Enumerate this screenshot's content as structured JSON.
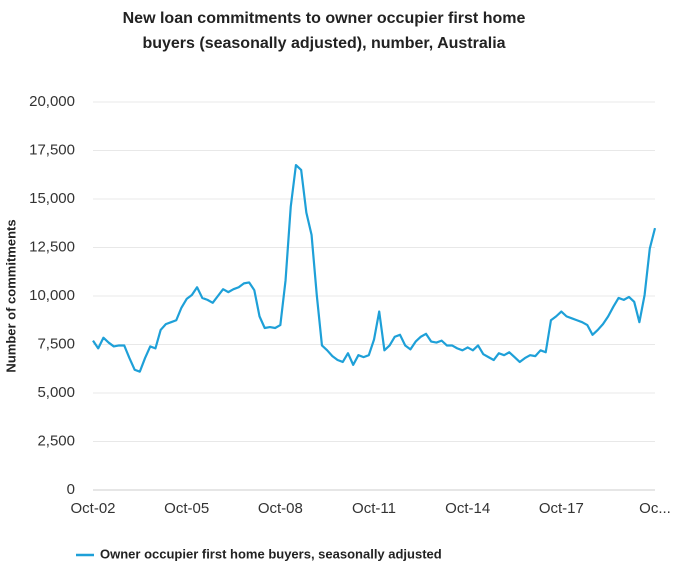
{
  "chart_data": {
    "type": "line",
    "title": "New loan commitments to owner occupier first home buyers (seasonally adjusted), number, Australia",
    "y_label": "Number of commitments",
    "categories": [
      "Oct-02",
      null,
      null,
      null,
      null,
      null,
      null,
      null,
      null,
      null,
      null,
      null,
      null,
      null,
      null,
      null,
      null,
      null,
      "Oct-05",
      null,
      null,
      null,
      null,
      null,
      null,
      null,
      null,
      null,
      null,
      null,
      null,
      null,
      null,
      null,
      null,
      null,
      "Oct-08",
      null,
      null,
      null,
      null,
      null,
      null,
      null,
      null,
      null,
      null,
      null,
      null,
      null,
      null,
      null,
      null,
      null,
      "Oct-11",
      null,
      null,
      null,
      null,
      null,
      null,
      null,
      null,
      null,
      null,
      null,
      null,
      null,
      null,
      null,
      null,
      null,
      "Oct-14",
      null,
      null,
      null,
      null,
      null,
      null,
      null,
      null,
      null,
      null,
      null,
      null,
      null,
      null,
      null,
      null,
      null,
      "Oct-17",
      null,
      null,
      null,
      null,
      null,
      null,
      null,
      null,
      null,
      null,
      null,
      null,
      null,
      null,
      null,
      null,
      null,
      "Oc..."
    ],
    "series": [
      {
        "name": "Owner occupier first home buyers, seasonally adjusted",
        "color": "#1ea0d8",
        "values": [
          7700,
          7300,
          7850,
          7600,
          7400,
          7450,
          7450,
          6800,
          6200,
          6100,
          6800,
          7400,
          7300,
          8250,
          8550,
          8650,
          8750,
          9400,
          9850,
          10050,
          10450,
          9900,
          9800,
          9650,
          10000,
          10350,
          10200,
          10350,
          10450,
          10650,
          10700,
          10300,
          8950,
          8350,
          8400,
          8350,
          8500,
          10800,
          14600,
          16750,
          16500,
          14300,
          13150,
          10050,
          7450,
          7200,
          6900,
          6700,
          6600,
          7050,
          6450,
          6950,
          6850,
          6950,
          7750,
          9200,
          7200,
          7450,
          7900,
          8000,
          7450,
          7250,
          7650,
          7900,
          8050,
          7650,
          7600,
          7700,
          7450,
          7450,
          7300,
          7200,
          7350,
          7200,
          7450,
          7000,
          6850,
          6700,
          7050,
          6950,
          7100,
          6850,
          6600,
          6800,
          6950,
          6900,
          7200,
          7100,
          8750,
          8950,
          9200,
          8950,
          8850,
          8750,
          8650,
          8500,
          8000,
          8250,
          8550,
          8950,
          9450,
          9900,
          9800,
          9950,
          9700,
          8650,
          10050,
          12450,
          13500
        ]
      }
    ],
    "ylim": [
      0,
      20000
    ],
    "yticks": [
      0,
      {
        "value": 2500,
        "label": "2,500"
      },
      {
        "value": 5000,
        "label": "5,000"
      },
      {
        "value": 7500,
        "label": "7,500"
      },
      {
        "value": 10000,
        "label": "10,000"
      },
      {
        "value": 12500,
        "label": "12,500"
      },
      {
        "value": 15000,
        "label": "15,000"
      },
      {
        "value": 17500,
        "label": "17,500"
      },
      {
        "value": 20000,
        "label": "20,000"
      }
    ],
    "grid": true
  }
}
